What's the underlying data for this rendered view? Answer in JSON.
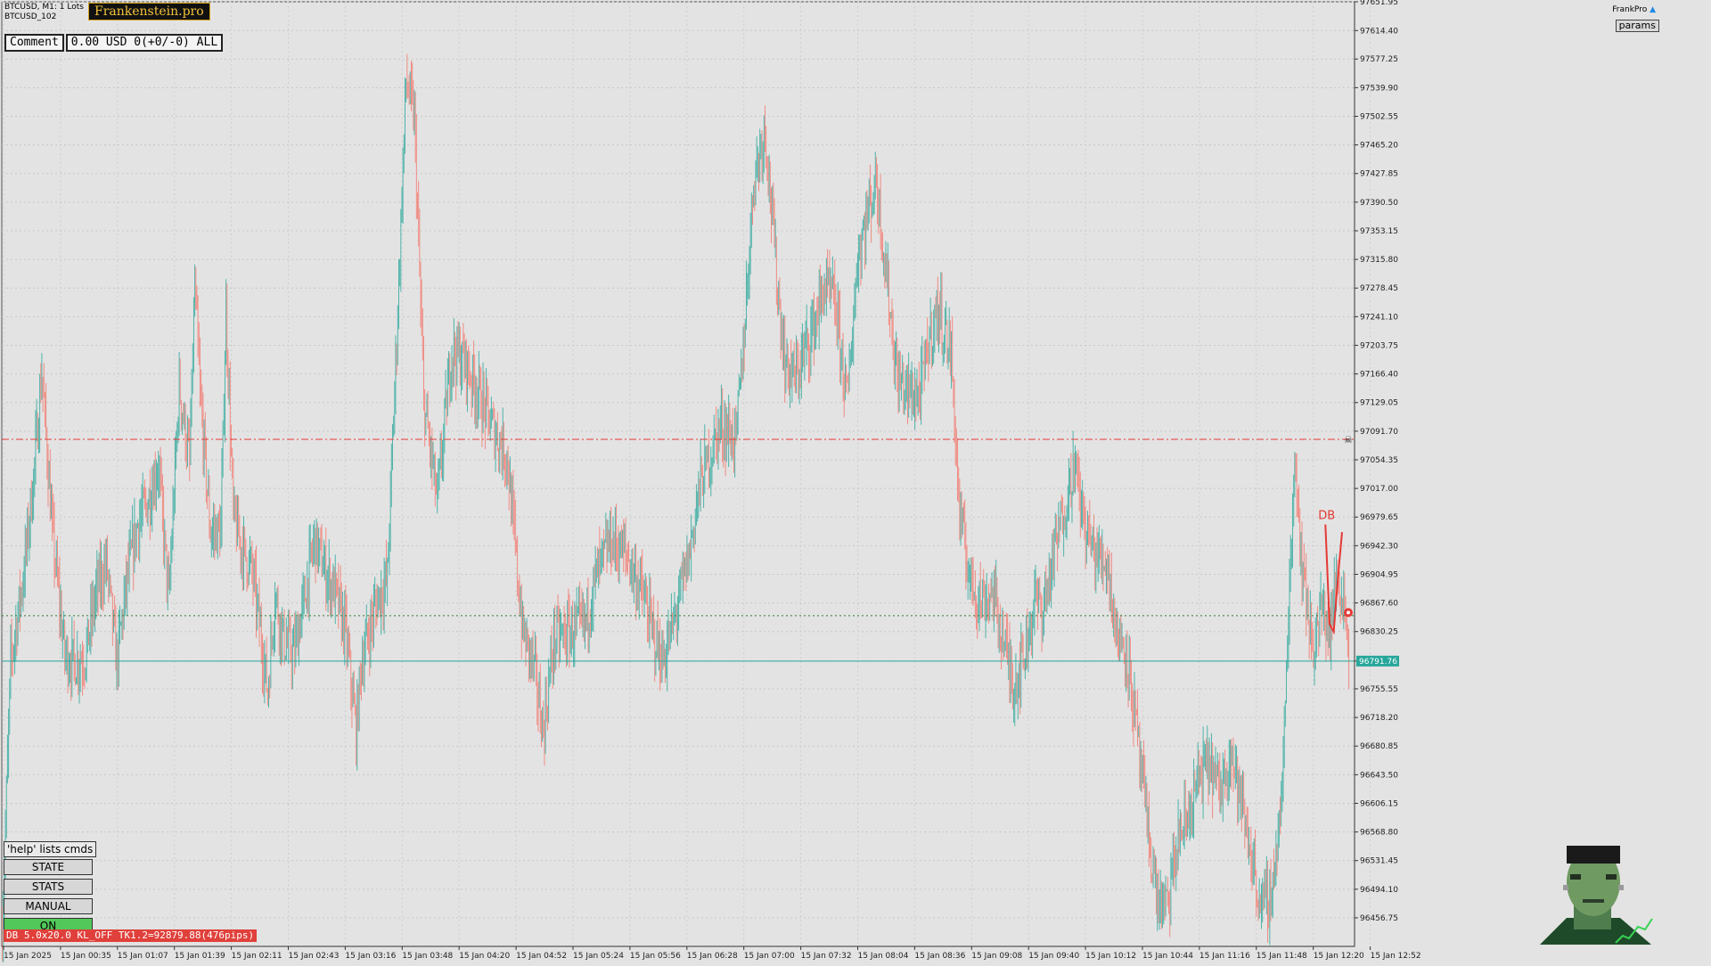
{
  "header": {
    "symbol_line": "BTCUSD, M1:",
    "lots": "1 Lots",
    "account": "BTCUSD_102",
    "logo_text": "Frankenstein.pro",
    "top_right_label": "FrankPro",
    "params_label": "params"
  },
  "comment": {
    "label": "Comment",
    "value": "0.00 USD 0(+0/-0) ALL"
  },
  "panel": {
    "help": "'help' lists cmds",
    "buttons": [
      "STATE",
      "STATS",
      "MANUAL",
      "ON"
    ]
  },
  "status_bar": {
    "tag": "DB",
    "text": "5.0x20.0 KL_OFF TK1.2=92879.88(476pips)"
  },
  "colors": {
    "background": "#e3e3e3",
    "bull_candle": "#4fb3a9",
    "bear_candle": "#f08b83",
    "price_line": "#26a69a",
    "red_level": "#e53935",
    "green_level": "#2e7d32",
    "db_marker": "#e53935"
  },
  "icons": {
    "logo": "frankenstein-logo-icon",
    "mascot": "frankenstein-mascot-icon",
    "skull": "skull-marker-icon",
    "target": "target-marker-icon"
  },
  "chart_data": {
    "type": "candlestick",
    "symbol": "BTCUSD",
    "timeframe": "M1",
    "ylim": [
      96419.5,
      97651.95
    ],
    "y_ticks": [
      97651.95,
      97614.4,
      97577.25,
      97539.9,
      97502.55,
      97465.2,
      97427.85,
      97390.5,
      97353.15,
      97315.8,
      97278.45,
      97241.1,
      97203.75,
      97166.4,
      97129.05,
      97091.7,
      97054.35,
      97017.0,
      96979.65,
      96942.3,
      96904.95,
      96867.6,
      96830.25,
      96791.76,
      96755.55,
      96718.2,
      96680.85,
      96643.5,
      96606.15,
      96568.8,
      96531.45,
      96494.1,
      96456.75
    ],
    "x_ticks": [
      "15 Jan 2025",
      "15 Jan 00:35",
      "15 Jan 01:07",
      "15 Jan 01:39",
      "15 Jan 02:11",
      "15 Jan 02:43",
      "15 Jan 03:16",
      "15 Jan 03:48",
      "15 Jan 04:20",
      "15 Jan 04:52",
      "15 Jan 05:24",
      "15 Jan 05:56",
      "15 Jan 06:28",
      "15 Jan 07:00",
      "15 Jan 07:32",
      "15 Jan 08:04",
      "15 Jan 08:36",
      "15 Jan 09:08",
      "15 Jan 09:40",
      "15 Jan 10:12",
      "15 Jan 10:44",
      "15 Jan 11:16",
      "15 Jan 11:48",
      "15 Jan 12:20",
      "15 Jan 12:52"
    ],
    "current_price": 96791.76,
    "levels": [
      {
        "price": 97081.0,
        "style": "dash-dot",
        "color": "red"
      },
      {
        "price": 96851.0,
        "style": "dotted",
        "color": "green"
      },
      {
        "price": 96791.76,
        "style": "solid",
        "color": "teal"
      }
    ],
    "close_path": [
      [
        0,
        96440
      ],
      [
        8,
        96790
      ],
      [
        20,
        96900
      ],
      [
        30,
        97030
      ],
      [
        38,
        97170
      ],
      [
        48,
        96960
      ],
      [
        60,
        96800
      ],
      [
        70,
        96790
      ],
      [
        80,
        96800
      ],
      [
        90,
        96880
      ],
      [
        100,
        96920
      ],
      [
        110,
        96790
      ],
      [
        120,
        96900
      ],
      [
        130,
        96970
      ],
      [
        140,
        97000
      ],
      [
        150,
        97050
      ],
      [
        160,
        96870
      ],
      [
        170,
        97150
      ],
      [
        180,
        97050
      ],
      [
        185,
        97280
      ],
      [
        190,
        97140
      ],
      [
        200,
        96960
      ],
      [
        210,
        96960
      ],
      [
        215,
        97250
      ],
      [
        222,
        96980
      ],
      [
        230,
        96940
      ],
      [
        240,
        96910
      ],
      [
        250,
        96810
      ],
      [
        255,
        96750
      ],
      [
        262,
        96880
      ],
      [
        270,
        96820
      ],
      [
        280,
        96800
      ],
      [
        290,
        96870
      ],
      [
        300,
        96950
      ],
      [
        310,
        96910
      ],
      [
        320,
        96880
      ],
      [
        330,
        96830
      ],
      [
        340,
        96700
      ],
      [
        345,
        96790
      ],
      [
        360,
        96870
      ],
      [
        370,
        96900
      ],
      [
        380,
        97250
      ],
      [
        388,
        97550
      ],
      [
        396,
        97500
      ],
      [
        405,
        97130
      ],
      [
        418,
        97000
      ],
      [
        432,
        97200
      ],
      [
        445,
        97180
      ],
      [
        455,
        97150
      ],
      [
        470,
        97100
      ],
      [
        485,
        97060
      ],
      [
        500,
        96830
      ],
      [
        510,
        96790
      ],
      [
        520,
        96700
      ],
      [
        530,
        96820
      ],
      [
        545,
        96830
      ],
      [
        560,
        96840
      ],
      [
        570,
        96900
      ],
      [
        585,
        96950
      ],
      [
        600,
        96930
      ],
      [
        615,
        96880
      ],
      [
        625,
        96830
      ],
      [
        635,
        96790
      ],
      [
        645,
        96840
      ],
      [
        660,
        96930
      ],
      [
        670,
        97020
      ],
      [
        680,
        97060
      ],
      [
        690,
        97100
      ],
      [
        705,
        97080
      ],
      [
        712,
        97200
      ],
      [
        722,
        97420
      ],
      [
        733,
        97490
      ],
      [
        745,
        97280
      ],
      [
        752,
        97180
      ],
      [
        762,
        97160
      ],
      [
        772,
        97200
      ],
      [
        780,
        97230
      ],
      [
        790,
        97280
      ],
      [
        800,
        97260
      ],
      [
        812,
        97130
      ],
      [
        822,
        97320
      ],
      [
        832,
        97380
      ],
      [
        840,
        97420
      ],
      [
        850,
        97290
      ],
      [
        860,
        97160
      ],
      [
        872,
        97140
      ],
      [
        882,
        97140
      ],
      [
        892,
        97220
      ],
      [
        900,
        97250
      ],
      [
        912,
        97190
      ],
      [
        920,
        96980
      ],
      [
        930,
        96900
      ],
      [
        940,
        96870
      ],
      [
        952,
        96880
      ],
      [
        962,
        96820
      ],
      [
        972,
        96760
      ],
      [
        982,
        96800
      ],
      [
        992,
        96870
      ],
      [
        1000,
        96860
      ],
      [
        1012,
        96940
      ],
      [
        1022,
        97000
      ],
      [
        1030,
        97050
      ],
      [
        1040,
        96970
      ],
      [
        1050,
        96930
      ],
      [
        1062,
        96920
      ],
      [
        1072,
        96820
      ],
      [
        1080,
        96810
      ],
      [
        1090,
        96700
      ],
      [
        1100,
        96580
      ],
      [
        1110,
        96480
      ],
      [
        1120,
        96470
      ],
      [
        1130,
        96560
      ],
      [
        1140,
        96590
      ],
      [
        1150,
        96640
      ],
      [
        1160,
        96660
      ],
      [
        1170,
        96620
      ],
      [
        1180,
        96680
      ],
      [
        1190,
        96610
      ],
      [
        1200,
        96540
      ],
      [
        1210,
        96470
      ],
      [
        1220,
        96490
      ],
      [
        1230,
        96620
      ],
      [
        1236,
        96860
      ],
      [
        1242,
        97060
      ],
      [
        1250,
        96900
      ],
      [
        1260,
        96810
      ],
      [
        1268,
        96860
      ],
      [
        1276,
        96830
      ],
      [
        1282,
        96900
      ],
      [
        1290,
        96870
      ],
      [
        1294,
        96790
      ]
    ],
    "db_pattern": {
      "label": "DB",
      "points": [
        [
          1272,
          96970
        ],
        [
          1276,
          96840
        ],
        [
          1280,
          96830
        ],
        [
          1284,
          96900
        ],
        [
          1288,
          96960
        ]
      ]
    },
    "markers": [
      {
        "type": "skull",
        "bar": 1294,
        "price": 97081.0
      },
      {
        "type": "target",
        "bar": 1294,
        "price": 96855.0
      }
    ]
  }
}
